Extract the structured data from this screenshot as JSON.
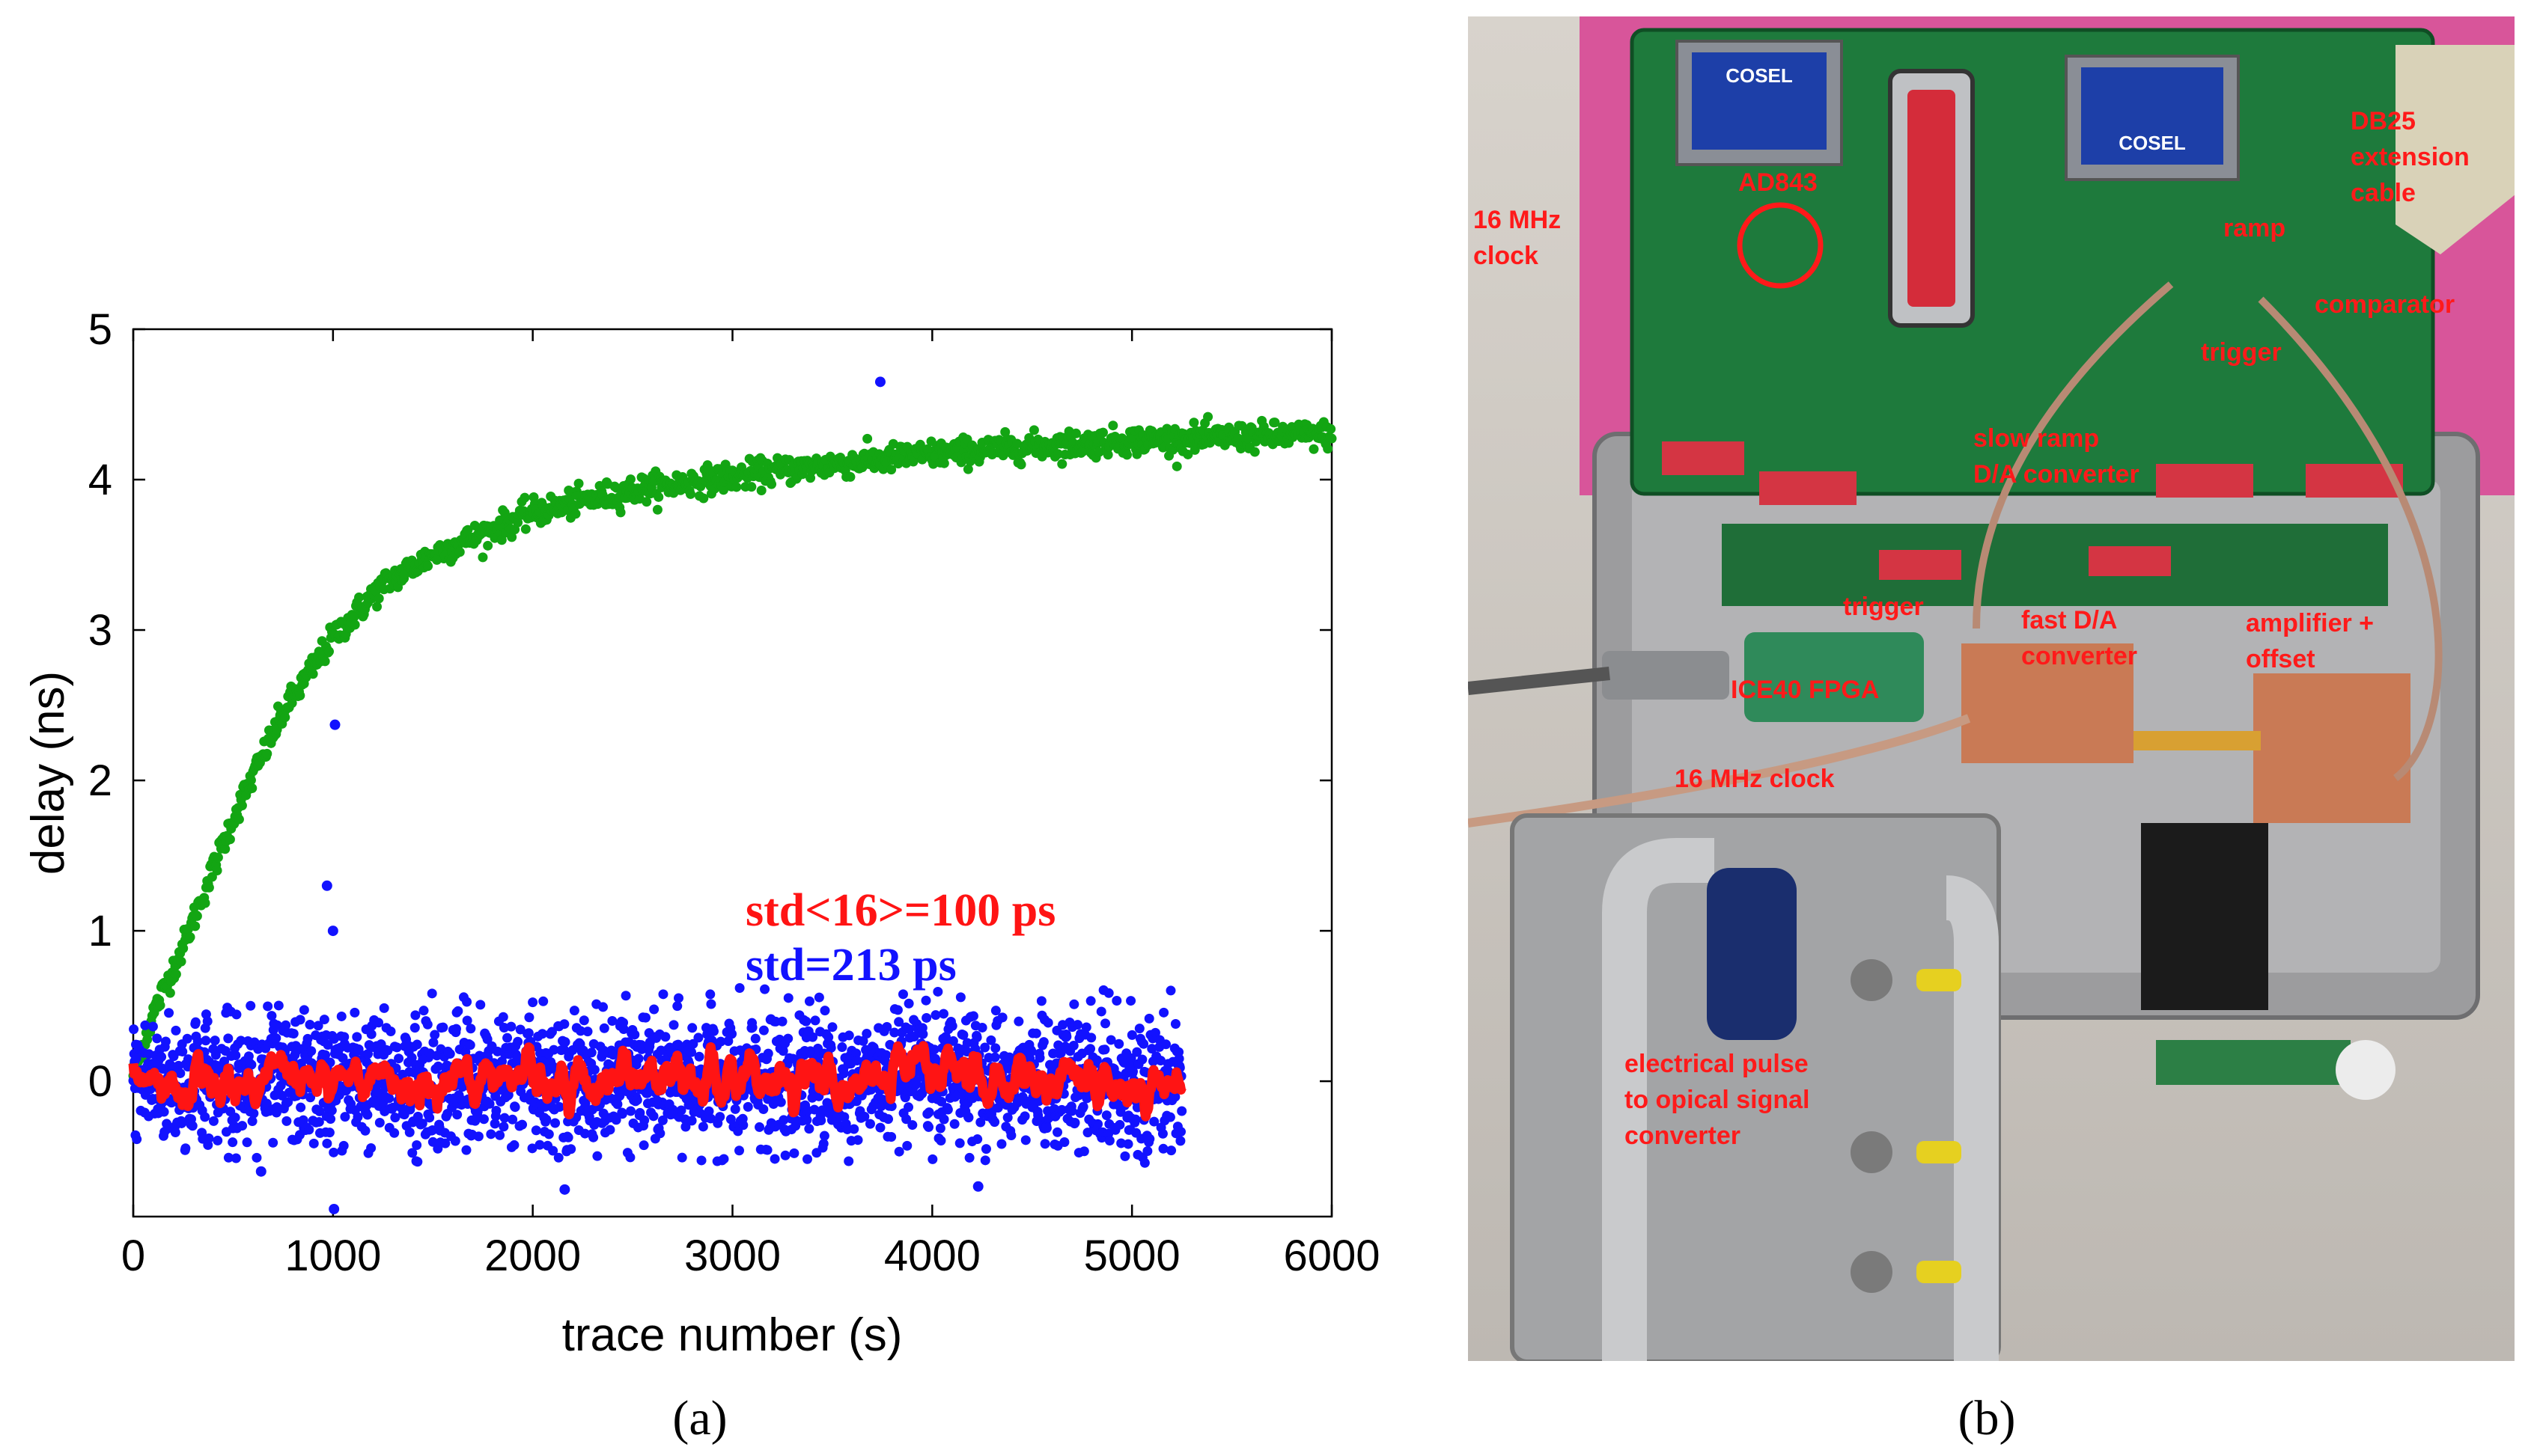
{
  "chart_data": {
    "type": "scatter",
    "xlabel": "trace number (s)",
    "ylabel": "delay (ns)",
    "xlim": [
      0,
      6000
    ],
    "ylim": [
      -0.9,
      5
    ],
    "xticks": [
      0,
      1000,
      2000,
      3000,
      4000,
      5000,
      6000
    ],
    "yticks": [
      0,
      1,
      2,
      3,
      4,
      5
    ],
    "grid": false,
    "series": [
      {
        "name": "",
        "color": "#13a513",
        "marker": "dot",
        "description_points": {
          "x": [
            0,
            100,
            250,
            500,
            750,
            1000,
            1250,
            1500,
            2000,
            2500,
            3000,
            3500,
            4000,
            4500,
            5000,
            5500,
            6000
          ],
          "y": [
            0.05,
            0.45,
            0.9,
            1.75,
            2.45,
            2.95,
            3.3,
            3.5,
            3.78,
            3.93,
            4.02,
            4.1,
            4.17,
            4.22,
            4.26,
            4.28,
            4.3
          ]
        }
      },
      {
        "name": "std=213 ps",
        "color": "#1212ff",
        "marker": "dot",
        "x_range": [
          0,
          5250
        ],
        "std_ns": 0.213,
        "mean_ns": 0.0,
        "outliers": {
          "x": [
            970,
            1010,
            1000,
            1005,
            3740,
            2160,
            640,
            4230
          ],
          "y": [
            1.3,
            2.37,
            1.0,
            -0.85,
            4.65,
            -0.72,
            -0.6,
            -0.7
          ]
        }
      },
      {
        "name": "std<16>=100 ps",
        "color": "#ff1414",
        "marker": "line",
        "x_range": [
          0,
          5250
        ],
        "std_ns": 0.1
      }
    ],
    "legend_entries": [
      "std<16>=100 ps",
      "std=213 ps"
    ]
  },
  "captions": {
    "a": "(a)",
    "b": "(b)"
  },
  "photo": {
    "annotations": [
      {
        "id": "ad843",
        "text": "AD843"
      },
      {
        "id": "clock16-top-1",
        "text": "16 MHz"
      },
      {
        "id": "clock16-top-2",
        "text": "clock"
      },
      {
        "id": "db25-1",
        "text": "DB25"
      },
      {
        "id": "db25-2",
        "text": "extension"
      },
      {
        "id": "db25-3",
        "text": "cable"
      },
      {
        "id": "ramp",
        "text": "ramp"
      },
      {
        "id": "comparator",
        "text": "comparator"
      },
      {
        "id": "trigger-top",
        "text": "trigger"
      },
      {
        "id": "slowramp-1",
        "text": "slow ramp"
      },
      {
        "id": "slowramp-2",
        "text": "D/A converter"
      },
      {
        "id": "trigger-mid",
        "text": "trigger"
      },
      {
        "id": "fastda-1",
        "text": "fast D/A"
      },
      {
        "id": "fastda-2",
        "text": "converter"
      },
      {
        "id": "amp-1",
        "text": "amplifier +"
      },
      {
        "id": "amp-2",
        "text": "offset"
      },
      {
        "id": "fpga",
        "text": "ICE40 FPGA"
      },
      {
        "id": "clock16-bot",
        "text": "16 MHz clock"
      },
      {
        "id": "pulse-1",
        "text": "electrical pulse"
      },
      {
        "id": "pulse-2",
        "text": "to opical signal"
      },
      {
        "id": "pulse-3",
        "text": "converter"
      },
      {
        "id": "cosel-1",
        "text": "COSEL"
      },
      {
        "id": "cosel-2",
        "text": "COSEL"
      }
    ]
  }
}
